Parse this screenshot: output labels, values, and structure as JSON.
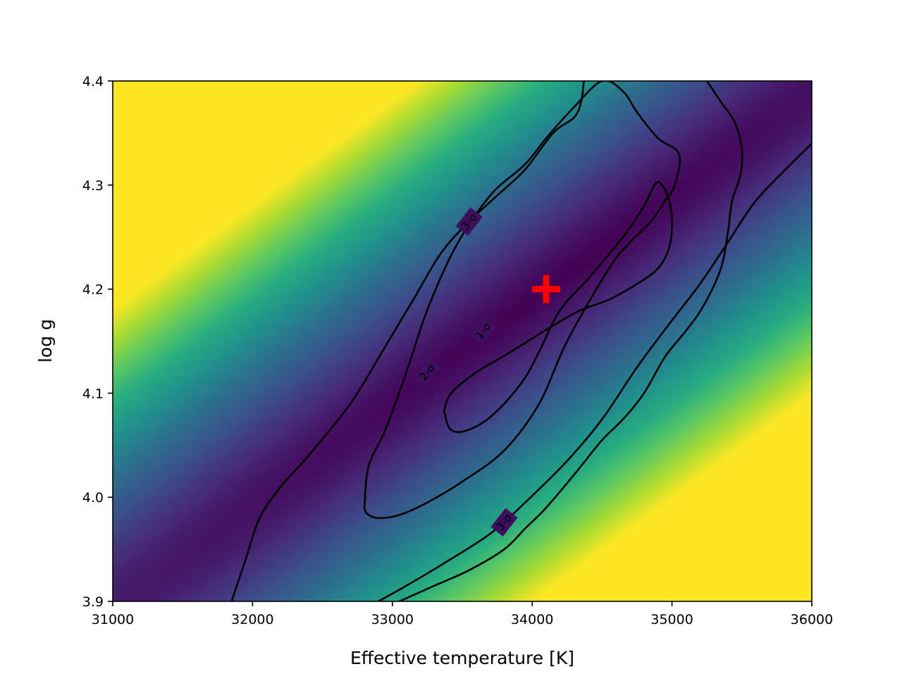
{
  "chart_data": {
    "type": "heatmap",
    "title": "",
    "xlabel": "Effective temperature [K]",
    "ylabel": "log g",
    "xlim": [
      31000,
      36000
    ],
    "ylim": [
      3.9,
      4.4
    ],
    "xticks": [
      "31000",
      "32000",
      "33000",
      "34000",
      "35000",
      "36000"
    ],
    "xtick_values": [
      31000,
      32000,
      33000,
      34000,
      35000,
      36000
    ],
    "yticks": [
      "3.9",
      "4.0",
      "4.1",
      "4.2",
      "4.3",
      "4.4"
    ],
    "ytick_values": [
      3.9,
      4.0,
      4.1,
      4.2,
      4.3,
      4.4
    ],
    "colormap": "viridis",
    "colorbar": false,
    "grid": false,
    "best_fit": {
      "x": 34100,
      "y": 4.2,
      "marker": "plus",
      "color": "#ff0000"
    },
    "contours": [
      {
        "label": "1-σ",
        "closed": true,
        "points": [
          [
            33370,
            4.083
          ],
          [
            33410,
            4.066
          ],
          [
            33500,
            4.063
          ],
          [
            33650,
            4.072
          ],
          [
            33800,
            4.09
          ],
          [
            33950,
            4.115
          ],
          [
            34050,
            4.14
          ],
          [
            34200,
            4.18
          ],
          [
            34400,
            4.21
          ],
          [
            34650,
            4.25
          ],
          [
            34800,
            4.28
          ],
          [
            34880,
            4.301
          ],
          [
            34930,
            4.3
          ],
          [
            34980,
            4.285
          ],
          [
            35000,
            4.265
          ],
          [
            34980,
            4.24
          ],
          [
            34900,
            4.22
          ],
          [
            34750,
            4.205
          ],
          [
            34550,
            4.19
          ],
          [
            34350,
            4.18
          ],
          [
            34150,
            4.165
          ],
          [
            33850,
            4.14
          ],
          [
            33600,
            4.12
          ],
          [
            33420,
            4.1
          ],
          [
            33370,
            4.083
          ]
        ],
        "label_points": [
          [
            33650,
            4.16
          ]
        ]
      },
      {
        "label": "2-σ",
        "closed": true,
        "points": [
          [
            32800,
            3.99
          ],
          [
            32820,
            3.984
          ],
          [
            32900,
            3.98
          ],
          [
            33050,
            3.983
          ],
          [
            33250,
            3.995
          ],
          [
            33500,
            4.015
          ],
          [
            33800,
            4.045
          ],
          [
            34050,
            4.09
          ],
          [
            34250,
            4.15
          ],
          [
            34550,
            4.22
          ],
          [
            34700,
            4.245
          ],
          [
            34850,
            4.265
          ],
          [
            34950,
            4.285
          ],
          [
            35020,
            4.3
          ],
          [
            35050,
            4.33
          ],
          [
            34900,
            4.345
          ],
          [
            34750,
            4.37
          ],
          [
            34650,
            4.39
          ],
          [
            34500,
            4.4
          ],
          [
            34300,
            4.375
          ],
          [
            34100,
            4.345
          ],
          [
            33950,
            4.32
          ],
          [
            33700,
            4.29
          ],
          [
            33450,
            4.24
          ],
          [
            33250,
            4.18
          ],
          [
            33100,
            4.12
          ],
          [
            32950,
            4.065
          ],
          [
            32830,
            4.03
          ],
          [
            32800,
            3.99
          ]
        ],
        "label_points": [
          [
            33250,
            4.12
          ]
        ]
      },
      {
        "label": "3-σ",
        "closed": false,
        "points": [
          [
            31850,
            3.9
          ],
          [
            31950,
            3.94
          ],
          [
            32050,
            3.98
          ],
          [
            32200,
            4.01
          ],
          [
            32400,
            4.04
          ],
          [
            32700,
            4.09
          ],
          [
            32950,
            4.145
          ],
          [
            33150,
            4.19
          ],
          [
            33350,
            4.235
          ],
          [
            33550,
            4.265
          ],
          [
            33750,
            4.29
          ],
          [
            33950,
            4.315
          ],
          [
            34150,
            4.35
          ],
          [
            34300,
            4.365
          ],
          [
            34350,
            4.38
          ],
          [
            34370,
            4.4
          ]
        ],
        "label_points": [
          [
            33550,
            4.265
          ]
        ]
      },
      {
        "label": "3-σ",
        "closed": false,
        "points": [
          [
            32900,
            3.9
          ],
          [
            33100,
            3.915
          ],
          [
            33350,
            3.935
          ],
          [
            33700,
            3.965
          ],
          [
            33950,
            3.995
          ],
          [
            34250,
            4.035
          ],
          [
            34500,
            4.075
          ],
          [
            34750,
            4.125
          ],
          [
            35000,
            4.17
          ],
          [
            35200,
            4.205
          ],
          [
            35400,
            4.245
          ],
          [
            35600,
            4.285
          ],
          [
            35850,
            4.32
          ],
          [
            36000,
            4.34
          ]
        ],
        "label_points": [
          [
            33800,
            3.976
          ]
        ]
      },
      {
        "label": "",
        "closed": false,
        "points": [
          [
            35250,
            4.4
          ],
          [
            35350,
            4.38
          ],
          [
            35450,
            4.36
          ],
          [
            35500,
            4.335
          ],
          [
            35490,
            4.31
          ],
          [
            35430,
            4.285
          ],
          [
            35400,
            4.255
          ],
          [
            35350,
            4.22
          ],
          [
            35230,
            4.185
          ],
          [
            35100,
            4.16
          ],
          [
            34950,
            4.135
          ],
          [
            34800,
            4.1
          ],
          [
            34650,
            4.075
          ],
          [
            34500,
            4.055
          ],
          [
            34320,
            4.025
          ],
          [
            34100,
            3.99
          ],
          [
            33950,
            3.97
          ],
          [
            33800,
            3.95
          ],
          [
            33550,
            3.93
          ],
          [
            33300,
            3.915
          ],
          [
            33050,
            3.9
          ]
        ],
        "label_points": []
      }
    ]
  }
}
